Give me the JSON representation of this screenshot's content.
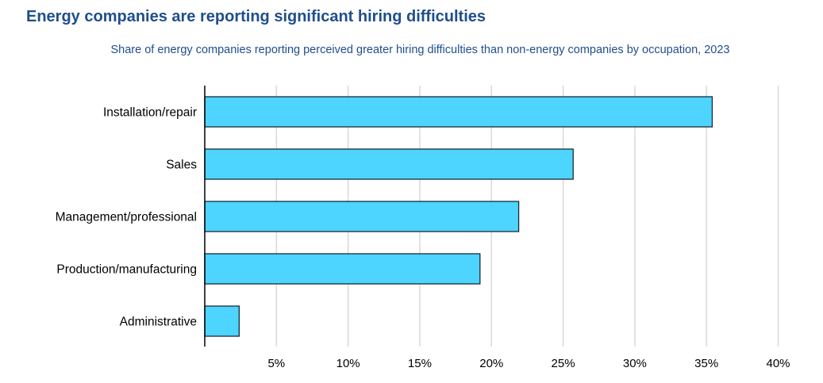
{
  "chart_data": {
    "type": "bar",
    "orientation": "horizontal",
    "title": "Energy companies are reporting significant hiring difficulties",
    "subtitle": "Share of energy companies reporting perceived greater hiring difficulties than non-energy companies by occupation, 2023",
    "categories": [
      "Installation/repair",
      "Sales",
      "Management/professional",
      "Production/manufacturing",
      "Administrative"
    ],
    "values": [
      35.4,
      25.7,
      21.9,
      19.2,
      2.4
    ],
    "xlabel": "",
    "ylabel": "",
    "xlim": [
      0,
      40
    ],
    "x_ticks": [
      5,
      10,
      15,
      20,
      25,
      30,
      35,
      40
    ],
    "x_tick_labels": [
      "5%",
      "10%",
      "15%",
      "20%",
      "25%",
      "30%",
      "35%",
      "40%"
    ],
    "grid": "vertical",
    "legend": "none",
    "bar_color": "#4dd4ff",
    "bar_edge_color": "#1a2a36",
    "title_color": "#1f4e8c",
    "grid_color": "#d9d9d9"
  }
}
